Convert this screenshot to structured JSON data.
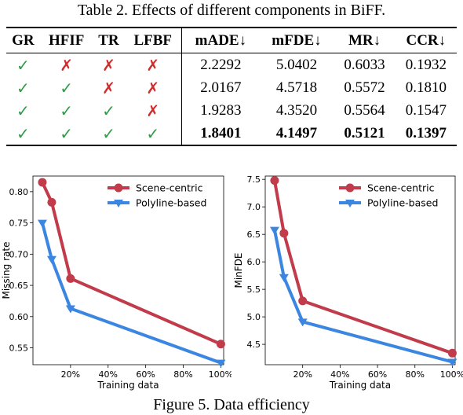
{
  "table": {
    "caption": "Table 2. Effects of different components in BiFF.",
    "headers": [
      "GR",
      "HFIF",
      "TR",
      "LFBF",
      "mADE↓",
      "mFDE↓",
      "MR↓",
      "CCR↓"
    ],
    "rows": [
      {
        "marks": [
          true,
          false,
          false,
          false
        ],
        "values": [
          "2.2292",
          "5.0402",
          "0.6033",
          "0.1932"
        ]
      },
      {
        "marks": [
          true,
          true,
          false,
          false
        ],
        "values": [
          "2.0167",
          "4.5718",
          "0.5572",
          "0.1810"
        ]
      },
      {
        "marks": [
          true,
          true,
          true,
          false
        ],
        "values": [
          "1.9283",
          "4.3520",
          "0.5564",
          "0.1547"
        ]
      },
      {
        "marks": [
          true,
          true,
          true,
          true
        ],
        "values": [
          "1.8401",
          "4.1497",
          "0.5121",
          "0.1397"
        ]
      }
    ],
    "check_symbol": "✓",
    "cross_symbol": "✗",
    "check_color": "#2e9b47",
    "cross_color": "#d42a2a"
  },
  "figure_caption": "Figure 5.  Data efficiency",
  "chart_data": [
    {
      "type": "line",
      "xlabel": "Training data",
      "ylabel": "Missing rate",
      "xticks": [
        "20%",
        "40%",
        "60%",
        "80%",
        "100%"
      ],
      "xtick_values": [
        20,
        40,
        60,
        80,
        100
      ],
      "yticks": [
        "0.55",
        "0.60",
        "0.65",
        "0.70",
        "0.75",
        "0.80"
      ],
      "ytick_values": [
        0.55,
        0.6,
        0.65,
        0.7,
        0.75,
        0.8
      ],
      "xlim": [
        0,
        101.5
      ],
      "ylim": [
        0.523,
        0.825
      ],
      "grid": false,
      "legend": "top-right",
      "series": [
        {
          "name": "Scene-centric",
          "color": "#c23b4a",
          "marker": "circle",
          "x": [
            5,
            10,
            20,
            100
          ],
          "y": [
            0.815,
            0.783,
            0.661,
            0.556
          ]
        },
        {
          "name": "Polyline-based",
          "color": "#3b86e0",
          "marker": "triangle-down",
          "x": [
            5,
            10,
            20,
            100
          ],
          "y": [
            0.75,
            0.692,
            0.613,
            0.526
          ]
        }
      ]
    },
    {
      "type": "line",
      "xlabel": "Training data",
      "ylabel": "MinFDE",
      "xticks": [
        "20%",
        "40%",
        "60%",
        "80%",
        "100%"
      ],
      "xtick_values": [
        20,
        40,
        60,
        80,
        100
      ],
      "yticks": [
        "4.5",
        "5.0",
        "5.5",
        "6.0",
        "6.5",
        "7.0",
        "7.5"
      ],
      "ytick_values": [
        4.5,
        5.0,
        5.5,
        6.0,
        6.5,
        7.0,
        7.5
      ],
      "xlim": [
        0,
        101.5
      ],
      "ylim": [
        4.13,
        7.56
      ],
      "grid": false,
      "legend": "top-right",
      "series": [
        {
          "name": "Scene-centric",
          "color": "#c23b4a",
          "marker": "circle",
          "x": [
            5,
            10,
            20,
            100
          ],
          "y": [
            7.48,
            6.52,
            5.29,
            4.34
          ]
        },
        {
          "name": "Polyline-based",
          "color": "#3b86e0",
          "marker": "triangle-down",
          "x": [
            5,
            10,
            20,
            100
          ],
          "y": [
            6.58,
            5.72,
            4.91,
            4.18
          ]
        }
      ]
    }
  ]
}
